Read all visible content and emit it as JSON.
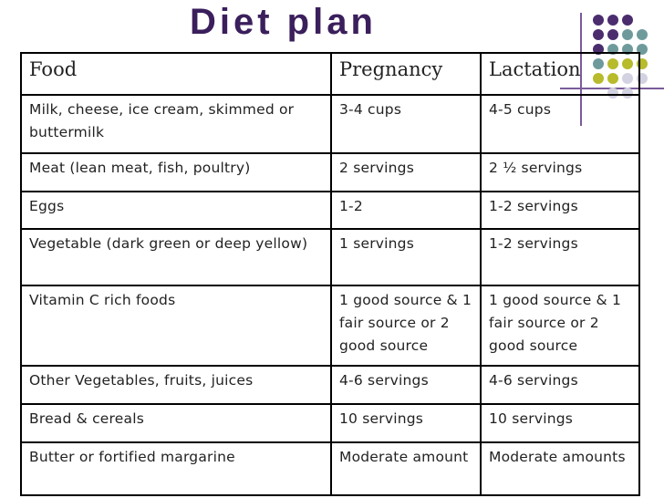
{
  "title": "Diet plan",
  "colors": {
    "title": "#3b1f5c",
    "dot_purple": "#4b2d6e",
    "dot_teal": "#6f9a9c",
    "dot_olive": "#b7bb2c",
    "dot_lavender": "#d2d2e2"
  },
  "table": {
    "headers": [
      "Food",
      "Pregnancy",
      "Lactation"
    ],
    "rows": [
      {
        "food": "Milk, cheese, ice cream, skimmed or buttermilk",
        "pregnancy": "3-4 cups",
        "lactation": "4-5 cups"
      },
      {
        "food": "Meat (lean meat, fish, poultry)",
        "pregnancy": "2 servings",
        "lactation": "2 ½ servings"
      },
      {
        "food": "Eggs",
        "pregnancy": "1-2",
        "lactation": "1-2 servings"
      },
      {
        "food": "Vegetable (dark green or deep yellow)",
        "pregnancy": "1 servings",
        "lactation": "1-2 servings"
      },
      {
        "food": "Vitamin C rich foods",
        "pregnancy": "1 good source & 1 fair source or 2 good source",
        "lactation": "1 good source & 1 fair source or 2 good source"
      },
      {
        "food": "Other Vegetables, fruits, juices",
        "pregnancy": "4-6 servings",
        "lactation": "4-6 servings"
      },
      {
        "food": "Bread & cereals",
        "pregnancy": "10 servings",
        "lactation": "10 servings"
      },
      {
        "food": "Butter or fortified margarine",
        "pregnancy": "Moderate amount",
        "lactation": "Moderate amounts"
      }
    ]
  }
}
